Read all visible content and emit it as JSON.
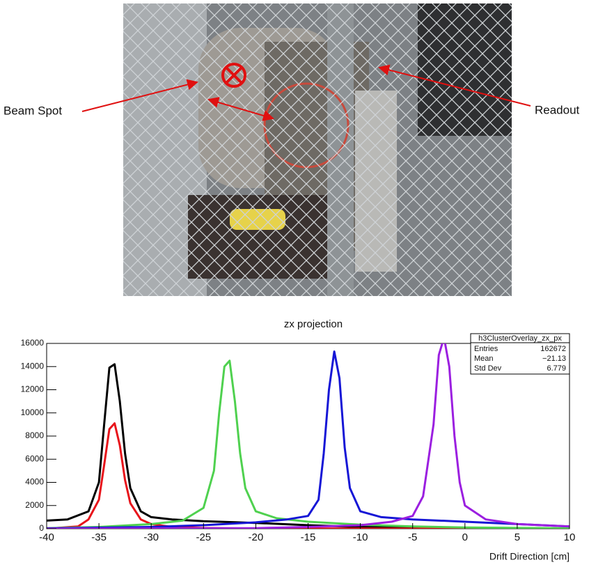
{
  "photo": {
    "labels": [
      "Beam Spot",
      "Readout"
    ]
  },
  "chart_data": {
    "type": "line",
    "title": "zx projection",
    "x_label": "Drift Direction [cm]",
    "xlim": [
      -40,
      10
    ],
    "ylim": [
      0,
      16000
    ],
    "xticks": [
      -40,
      -35,
      -30,
      -25,
      -20,
      -15,
      -10,
      -5,
      0,
      5,
      10
    ],
    "yticks": [
      0,
      2000,
      4000,
      6000,
      8000,
      10000,
      12000,
      14000,
      16000
    ],
    "series": [
      {
        "color": "#000000",
        "x": [
          -40,
          -38,
          -36,
          -35,
          -34.5,
          -34,
          -33.5,
          -33,
          -32.5,
          -32,
          -31,
          -30,
          -28,
          -25,
          -20,
          -15,
          -10,
          -5,
          0,
          5,
          10
        ],
        "values": [
          700,
          800,
          1500,
          4000,
          9000,
          13900,
          14200,
          11000,
          6500,
          3500,
          1500,
          1000,
          800,
          650,
          500,
          300,
          150,
          100,
          60,
          40,
          30
        ]
      },
      {
        "color": "#e8141b",
        "x": [
          -40,
          -37,
          -36,
          -35,
          -34.5,
          -34,
          -33.5,
          -33,
          -32.5,
          -32,
          -31,
          -30,
          -28,
          -25,
          -20,
          -10,
          0,
          10
        ],
        "values": [
          0,
          200,
          800,
          2500,
          5500,
          8600,
          9100,
          7200,
          4200,
          2200,
          800,
          400,
          150,
          60,
          20,
          10,
          0,
          0
        ]
      },
      {
        "color": "#4fd14f",
        "x": [
          -40,
          -35,
          -30,
          -27,
          -25,
          -24,
          -23.5,
          -23,
          -22.5,
          -22,
          -21.5,
          -21,
          -20,
          -18,
          -15,
          -10,
          -5,
          0,
          10
        ],
        "values": [
          50,
          150,
          400,
          700,
          1800,
          5000,
          10000,
          14000,
          14500,
          11000,
          6500,
          3500,
          1500,
          900,
          600,
          350,
          200,
          100,
          30
        ]
      },
      {
        "color": "#1616d6",
        "x": [
          -40,
          -30,
          -25,
          -20,
          -17,
          -15,
          -14,
          -13.5,
          -13,
          -12.5,
          -12,
          -11.5,
          -11,
          -10,
          -8,
          -5,
          0,
          5,
          10
        ],
        "values": [
          30,
          150,
          300,
          550,
          800,
          1100,
          2500,
          6500,
          12000,
          15300,
          13000,
          7000,
          3500,
          1500,
          1000,
          800,
          600,
          400,
          200
        ]
      },
      {
        "color": "#9b1fe0",
        "x": [
          -40,
          -20,
          -15,
          -10,
          -7,
          -5,
          -4,
          -3,
          -2.5,
          -2,
          -1.5,
          -1,
          -0.5,
          0,
          2,
          5,
          10
        ],
        "values": [
          0,
          50,
          150,
          300,
          600,
          1100,
          2800,
          9000,
          15000,
          16500,
          14000,
          8000,
          4000,
          2000,
          800,
          400,
          200
        ]
      }
    ],
    "stats": {
      "title": "h3ClusterOverlay_zx_px",
      "entries_label": "Entries",
      "entries": 162672,
      "mean_label": "Mean",
      "mean": {
        "value": -21.13,
        "label": "−21.13"
      },
      "std_label": "Std Dev",
      "std": 6.779
    }
  }
}
